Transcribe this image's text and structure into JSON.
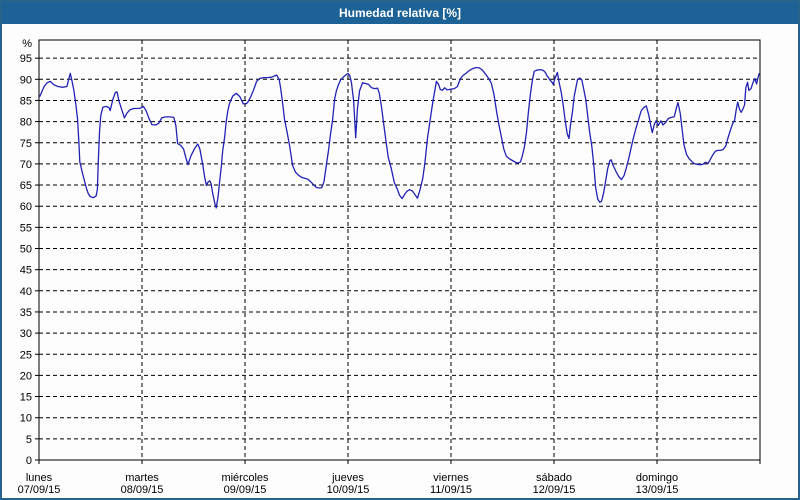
{
  "window": {
    "title": "Humedad relativa [%]",
    "title_bar_color": "#1d6296",
    "border_color": "#26648e"
  },
  "chart_data": {
    "type": "line",
    "title": "Humedad relativa [%]",
    "unit_label": "%",
    "ylim": [
      0,
      100
    ],
    "y_ticks": [
      0,
      5,
      10,
      15,
      20,
      25,
      30,
      35,
      40,
      45,
      50,
      55,
      60,
      65,
      70,
      75,
      80,
      85,
      90,
      95
    ],
    "x_range_hours": [
      0,
      168
    ],
    "x_day_boundaries_hours": [
      0,
      24,
      48,
      72,
      96,
      120,
      144,
      168
    ],
    "grid": "dashed",
    "legend": "none",
    "line_color": "#2222b4",
    "days": [
      {
        "name": "lunes",
        "date": "07/09/15"
      },
      {
        "name": "martes",
        "date": "08/09/15"
      },
      {
        "name": "miércoles",
        "date": "09/09/15"
      },
      {
        "name": "jueves",
        "date": "10/09/15"
      },
      {
        "name": "viernes",
        "date": "11/09/15"
      },
      {
        "name": "sábado",
        "date": "12/09/15"
      },
      {
        "name": "domingo",
        "date": "13/09/15"
      }
    ],
    "series": [
      {
        "name": "Humedad relativa",
        "points": [
          [
            0.2,
            86.0
          ],
          [
            1.2,
            88.3
          ],
          [
            1.9,
            89.2
          ],
          [
            2.6,
            89.5
          ],
          [
            3.5,
            88.7
          ],
          [
            4.4,
            88.3
          ],
          [
            5.6,
            88.1
          ],
          [
            6.5,
            88.3
          ],
          [
            7.0,
            90.3
          ],
          [
            7.3,
            91.4
          ],
          [
            7.7,
            89.6
          ],
          [
            8.1,
            87.5
          ],
          [
            8.6,
            84.0
          ],
          [
            9.0,
            80.5
          ],
          [
            9.3,
            75.0
          ],
          [
            9.5,
            70.5
          ],
          [
            10.2,
            67.5
          ],
          [
            10.7,
            65.6
          ],
          [
            11.1,
            64.1
          ],
          [
            11.5,
            62.9
          ],
          [
            11.9,
            62.3
          ],
          [
            12.6,
            62.0
          ],
          [
            13.3,
            62.4
          ],
          [
            13.6,
            64.0
          ],
          [
            13.8,
            70.0
          ],
          [
            14.1,
            77.5
          ],
          [
            14.4,
            81.5
          ],
          [
            14.9,
            83.4
          ],
          [
            15.6,
            83.6
          ],
          [
            16.3,
            83.3
          ],
          [
            16.6,
            82.6
          ],
          [
            17.2,
            85.2
          ],
          [
            17.8,
            86.9
          ],
          [
            18.2,
            87.0
          ],
          [
            18.6,
            85.0
          ],
          [
            19.3,
            82.8
          ],
          [
            19.9,
            80.9
          ],
          [
            20.5,
            82.0
          ],
          [
            21.2,
            82.8
          ],
          [
            22.1,
            83.1
          ],
          [
            23.0,
            83.1
          ],
          [
            23.7,
            83.2
          ],
          [
            24.3,
            83.6
          ],
          [
            24.9,
            82.7
          ],
          [
            25.6,
            80.8
          ],
          [
            26.3,
            79.3
          ],
          [
            27.2,
            79.2
          ],
          [
            27.9,
            79.6
          ],
          [
            28.6,
            80.9
          ],
          [
            29.6,
            81.1
          ],
          [
            30.5,
            81.1
          ],
          [
            31.4,
            81.0
          ],
          [
            31.9,
            79.0
          ],
          [
            32.3,
            74.8
          ],
          [
            33.0,
            74.4
          ],
          [
            33.7,
            73.5
          ],
          [
            34.2,
            71.5
          ],
          [
            34.7,
            69.8
          ],
          [
            35.4,
            71.9
          ],
          [
            36.3,
            73.7
          ],
          [
            37.0,
            74.7
          ],
          [
            37.5,
            73.5
          ],
          [
            38.2,
            69.6
          ],
          [
            38.6,
            66.8
          ],
          [
            39.0,
            64.9
          ],
          [
            39.3,
            65.6
          ],
          [
            39.8,
            66.0
          ],
          [
            40.1,
            65.3
          ],
          [
            40.5,
            62.9
          ],
          [
            41.0,
            60.5
          ],
          [
            41.3,
            59.6
          ],
          [
            41.7,
            62.1
          ],
          [
            42.1,
            66.0
          ],
          [
            42.5,
            69.6
          ],
          [
            42.8,
            73.1
          ],
          [
            43.3,
            76.6
          ],
          [
            43.6,
            79.8
          ],
          [
            44.0,
            82.5
          ],
          [
            44.4,
            84.3
          ],
          [
            45.1,
            86.0
          ],
          [
            46.0,
            86.7
          ],
          [
            46.8,
            85.9
          ],
          [
            47.6,
            84.2
          ],
          [
            48.2,
            84.2
          ],
          [
            48.6,
            84.5
          ],
          [
            49.3,
            85.8
          ],
          [
            50.0,
            87.5
          ],
          [
            50.7,
            89.5
          ],
          [
            51.4,
            90.2
          ],
          [
            52.4,
            90.4
          ],
          [
            53.3,
            90.4
          ],
          [
            54.2,
            90.5
          ],
          [
            54.9,
            90.8
          ],
          [
            55.4,
            91.0
          ],
          [
            56.0,
            89.8
          ],
          [
            56.3,
            88.0
          ],
          [
            56.8,
            84.0
          ],
          [
            57.2,
            80.6
          ],
          [
            57.8,
            77.5
          ],
          [
            58.4,
            74.3
          ],
          [
            59.1,
            69.6
          ],
          [
            59.8,
            68.0
          ],
          [
            60.5,
            67.3
          ],
          [
            61.2,
            66.8
          ],
          [
            61.9,
            66.6
          ],
          [
            62.6,
            66.4
          ],
          [
            63.3,
            65.8
          ],
          [
            64.0,
            65.0
          ],
          [
            64.7,
            64.4
          ],
          [
            65.4,
            64.3
          ],
          [
            65.9,
            64.4
          ],
          [
            66.4,
            65.8
          ],
          [
            67.0,
            70.0
          ],
          [
            67.5,
            73.5
          ],
          [
            67.9,
            76.8
          ],
          [
            68.4,
            80.5
          ],
          [
            68.9,
            85.4
          ],
          [
            69.3,
            87.3
          ],
          [
            69.8,
            88.8
          ],
          [
            70.3,
            89.9
          ],
          [
            71.0,
            90.6
          ],
          [
            71.7,
            91.2
          ],
          [
            72.0,
            91.4
          ],
          [
            72.4,
            90.9
          ],
          [
            72.8,
            89.3
          ],
          [
            73.3,
            85.0
          ],
          [
            73.8,
            76.2
          ],
          [
            74.2,
            83.0
          ],
          [
            74.7,
            87.3
          ],
          [
            75.4,
            89.2
          ],
          [
            76.1,
            89.0
          ],
          [
            76.8,
            88.8
          ],
          [
            77.5,
            88.0
          ],
          [
            78.2,
            87.8
          ],
          [
            78.9,
            87.9
          ],
          [
            79.3,
            86.7
          ],
          [
            79.8,
            83.5
          ],
          [
            80.3,
            79.6
          ],
          [
            80.9,
            75.0
          ],
          [
            81.4,
            71.5
          ],
          [
            82.1,
            68.9
          ],
          [
            82.8,
            65.6
          ],
          [
            83.5,
            64.0
          ],
          [
            84.0,
            62.6
          ],
          [
            84.6,
            61.8
          ],
          [
            85.2,
            62.8
          ],
          [
            85.7,
            63.5
          ],
          [
            86.3,
            63.9
          ],
          [
            87.0,
            63.6
          ],
          [
            87.7,
            62.6
          ],
          [
            88.2,
            61.9
          ],
          [
            88.8,
            64.0
          ],
          [
            89.4,
            66.5
          ],
          [
            89.9,
            70.0
          ],
          [
            90.5,
            75.9
          ],
          [
            91.2,
            80.8
          ],
          [
            91.8,
            84.9
          ],
          [
            92.3,
            87.7
          ],
          [
            92.6,
            89.5
          ],
          [
            93.1,
            88.8
          ],
          [
            93.5,
            87.6
          ],
          [
            94.0,
            87.4
          ],
          [
            94.5,
            88.0
          ],
          [
            95.1,
            87.5
          ],
          [
            95.6,
            87.6
          ],
          [
            96.1,
            87.7
          ],
          [
            96.8,
            87.8
          ],
          [
            97.5,
            88.3
          ],
          [
            98.2,
            90.2
          ],
          [
            98.9,
            91.0
          ],
          [
            99.6,
            91.5
          ],
          [
            100.3,
            92.1
          ],
          [
            101.0,
            92.5
          ],
          [
            101.9,
            92.8
          ],
          [
            102.6,
            92.7
          ],
          [
            103.3,
            92.2
          ],
          [
            104.0,
            91.3
          ],
          [
            104.7,
            90.3
          ],
          [
            105.4,
            89.1
          ],
          [
            106.0,
            86.5
          ],
          [
            106.6,
            82.5
          ],
          [
            107.2,
            79.0
          ],
          [
            107.7,
            76.6
          ],
          [
            108.3,
            73.5
          ],
          [
            108.9,
            71.8
          ],
          [
            109.6,
            71.2
          ],
          [
            110.3,
            70.8
          ],
          [
            111.0,
            70.4
          ],
          [
            111.7,
            70.2
          ],
          [
            112.2,
            70.5
          ],
          [
            112.6,
            71.8
          ],
          [
            113.1,
            74.0
          ],
          [
            113.6,
            77.5
          ],
          [
            114.0,
            82.0
          ],
          [
            114.5,
            86.5
          ],
          [
            115.0,
            90.0
          ],
          [
            115.4,
            91.9
          ],
          [
            116.1,
            92.2
          ],
          [
            116.8,
            92.3
          ],
          [
            117.5,
            92.1
          ],
          [
            118.0,
            91.6
          ],
          [
            118.4,
            90.8
          ],
          [
            119.1,
            89.8
          ],
          [
            119.6,
            89.2
          ],
          [
            119.8,
            88.8
          ],
          [
            120.3,
            90.4
          ],
          [
            120.8,
            91.6
          ],
          [
            121.2,
            89.3
          ],
          [
            121.7,
            86.8
          ],
          [
            122.2,
            83.6
          ],
          [
            122.6,
            80.2
          ],
          [
            123.1,
            77.0
          ],
          [
            123.5,
            76.0
          ],
          [
            123.8,
            78.9
          ],
          [
            124.3,
            82.4
          ],
          [
            124.7,
            86.0
          ],
          [
            125.2,
            88.5
          ],
          [
            125.5,
            90.0
          ],
          [
            126.0,
            90.3
          ],
          [
            126.5,
            89.8
          ],
          [
            126.9,
            87.8
          ],
          [
            127.4,
            85.2
          ],
          [
            127.9,
            81.0
          ],
          [
            128.3,
            77.6
          ],
          [
            128.8,
            74.2
          ],
          [
            129.3,
            69.5
          ],
          [
            129.7,
            64.5
          ],
          [
            130.2,
            61.6
          ],
          [
            130.7,
            60.9
          ],
          [
            131.1,
            61.2
          ],
          [
            131.6,
            63.3
          ],
          [
            132.1,
            66.3
          ],
          [
            132.5,
            68.8
          ],
          [
            133.0,
            70.7
          ],
          [
            133.3,
            71.0
          ],
          [
            133.8,
            69.6
          ],
          [
            134.5,
            68.1
          ],
          [
            135.1,
            67.0
          ],
          [
            135.7,
            66.3
          ],
          [
            136.3,
            67.2
          ],
          [
            136.8,
            68.9
          ],
          [
            137.4,
            71.2
          ],
          [
            138.0,
            74.0
          ],
          [
            138.6,
            76.5
          ],
          [
            139.2,
            78.8
          ],
          [
            139.7,
            80.4
          ],
          [
            140.3,
            82.5
          ],
          [
            140.9,
            83.3
          ],
          [
            141.5,
            83.7
          ],
          [
            142.1,
            81.5
          ],
          [
            142.6,
            78.8
          ],
          [
            142.9,
            77.4
          ],
          [
            143.4,
            79.4
          ],
          [
            143.8,
            80.2
          ],
          [
            144.3,
            79.1
          ],
          [
            144.9,
            80.2
          ],
          [
            145.4,
            79.2
          ],
          [
            146.0,
            79.8
          ],
          [
            146.6,
            80.7
          ],
          [
            147.3,
            81.0
          ],
          [
            148.0,
            81.1
          ],
          [
            148.6,
            83.5
          ],
          [
            148.9,
            84.5
          ],
          [
            149.4,
            82.0
          ],
          [
            149.9,
            77.8
          ],
          [
            150.3,
            74.5
          ],
          [
            150.9,
            72.2
          ],
          [
            151.5,
            71.2
          ],
          [
            152.1,
            70.6
          ],
          [
            152.6,
            70.1
          ],
          [
            153.3,
            69.9
          ],
          [
            154.0,
            69.8
          ],
          [
            154.7,
            69.9
          ],
          [
            155.3,
            70.4
          ],
          [
            155.9,
            70.1
          ],
          [
            156.5,
            71.2
          ],
          [
            157.1,
            72.3
          ],
          [
            157.6,
            73.0
          ],
          [
            158.2,
            73.2
          ],
          [
            158.8,
            73.2
          ],
          [
            159.4,
            73.4
          ],
          [
            160.0,
            74.2
          ],
          [
            160.5,
            76.0
          ],
          [
            161.1,
            78.0
          ],
          [
            161.6,
            79.4
          ],
          [
            162.1,
            80.4
          ],
          [
            162.4,
            82.5
          ],
          [
            162.8,
            84.6
          ],
          [
            163.2,
            83.0
          ],
          [
            163.6,
            82.2
          ],
          [
            164.0,
            82.9
          ],
          [
            164.4,
            84.0
          ],
          [
            164.7,
            88.0
          ],
          [
            165.1,
            89.3
          ],
          [
            165.4,
            87.4
          ],
          [
            165.9,
            87.8
          ],
          [
            166.4,
            89.3
          ],
          [
            166.8,
            90.2
          ],
          [
            167.2,
            88.9
          ],
          [
            167.5,
            90.3
          ],
          [
            167.8,
            91.3
          ]
        ]
      }
    ]
  }
}
